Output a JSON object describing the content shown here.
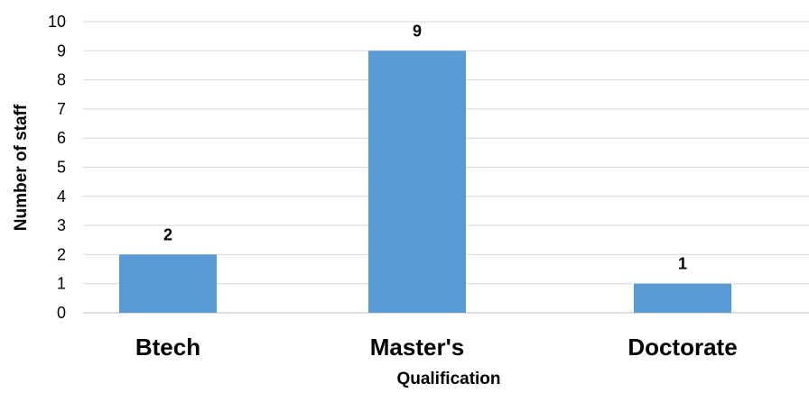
{
  "chart_data": {
    "type": "bar",
    "categories": [
      "Btech",
      "Master's",
      "Doctorate"
    ],
    "values": [
      2,
      9,
      1
    ],
    "xlabel": "Qualification",
    "ylabel": "Number of staff",
    "ylim": [
      0,
      10
    ],
    "yticks": [
      "0",
      "1",
      "2",
      "3",
      "4",
      "5",
      "6",
      "7",
      "8",
      "9",
      "10"
    ],
    "bar_color": "#5b9bd5",
    "grid": true,
    "legend": "none",
    "data_labels": true
  }
}
